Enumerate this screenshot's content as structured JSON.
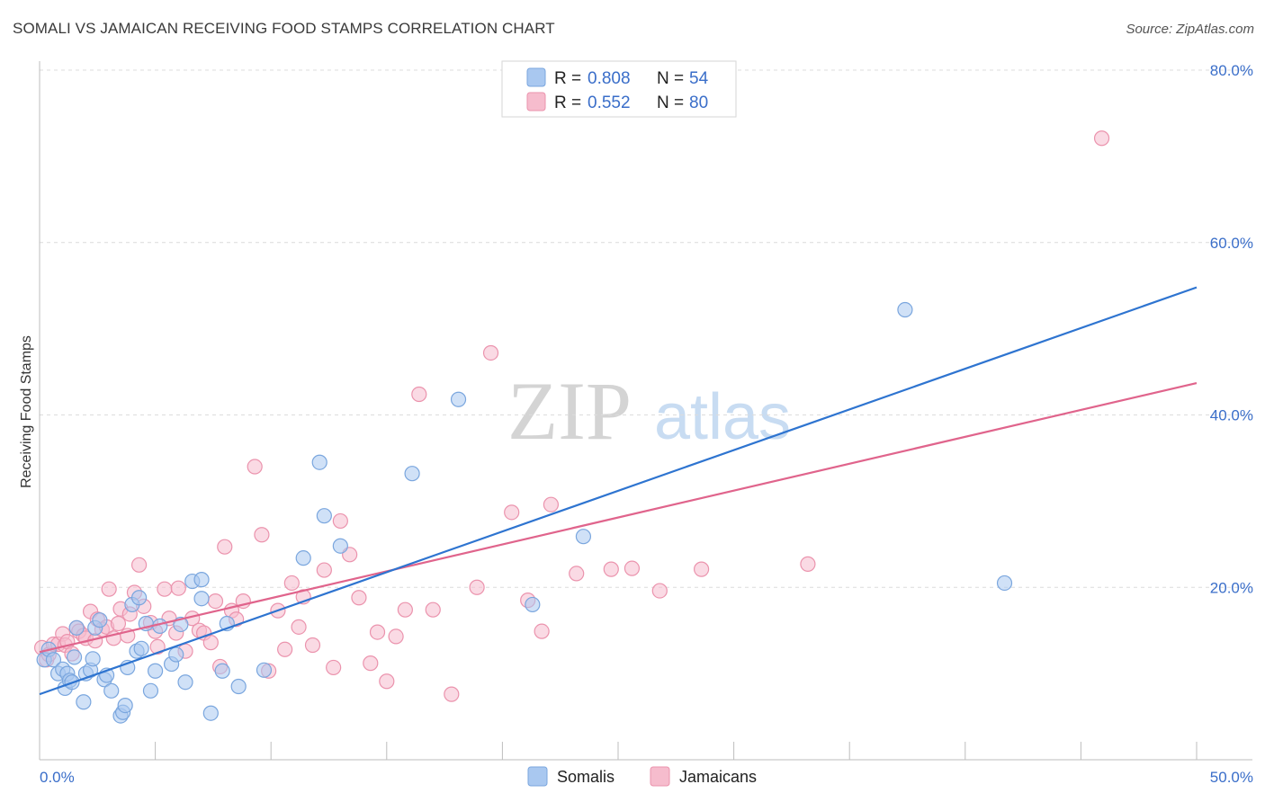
{
  "header": {
    "title": "SOMALI VS JAMAICAN RECEIVING FOOD STAMPS CORRELATION CHART",
    "source": "Source: ZipAtlas.com"
  },
  "watermark": {
    "zip": "ZIP",
    "atlas": "atlas"
  },
  "colors": {
    "somali_fill": "#a9c8f0",
    "somali_stroke": "#7aa6de",
    "somali_line": "#2e74d0",
    "jamaican_fill": "#f6bccd",
    "jamaican_stroke": "#eb93ad",
    "jamaican_line": "#e0648c",
    "grid": "#dcdcdc",
    "tick_label": "#3a6ec9"
  },
  "legend": {
    "r_label": "R =",
    "n_label": "N =",
    "rows": [
      {
        "series": "Somalis",
        "r": "0.808",
        "n": "54"
      },
      {
        "series": "Jamaicans",
        "r": "0.552",
        "n": "80"
      }
    ]
  },
  "chart_data": {
    "type": "scatter",
    "title": "SOMALI VS JAMAICAN RECEIVING FOOD STAMPS CORRELATION CHART",
    "xlabel": "",
    "ylabel": "Receiving Food Stamps",
    "xlim": [
      0,
      50
    ],
    "ylim": [
      0,
      80
    ],
    "x_tick_labels": [
      {
        "value": 0,
        "label": "0.0%"
      },
      {
        "value": 50,
        "label": "50.0%"
      }
    ],
    "y_tick_labels": [
      {
        "value": 20,
        "label": "20.0%"
      },
      {
        "value": 40,
        "label": "40.0%"
      },
      {
        "value": 60,
        "label": "60.0%"
      },
      {
        "value": 80,
        "label": "80.0%"
      }
    ],
    "grid": true,
    "legend_position": "top-center",
    "series": [
      {
        "name": "Somalis",
        "r": 0.808,
        "n": 54,
        "trend": {
          "x0": 0,
          "y0": 7.6,
          "x1": 50,
          "y1": 54.8
        },
        "points": [
          [
            0.2,
            11.6
          ],
          [
            0.4,
            12.8
          ],
          [
            0.6,
            11.6
          ],
          [
            0.8,
            10.0
          ],
          [
            1.0,
            10.5
          ],
          [
            1.1,
            8.3
          ],
          [
            1.2,
            10.0
          ],
          [
            1.3,
            9.2
          ],
          [
            1.4,
            9.0
          ],
          [
            1.5,
            11.9
          ],
          [
            1.6,
            15.3
          ],
          [
            1.9,
            6.7
          ],
          [
            2.0,
            10.0
          ],
          [
            2.2,
            10.4
          ],
          [
            2.3,
            11.7
          ],
          [
            2.4,
            15.3
          ],
          [
            2.8,
            9.3
          ],
          [
            2.9,
            9.8
          ],
          [
            3.1,
            8.0
          ],
          [
            3.5,
            5.1
          ],
          [
            3.6,
            5.5
          ],
          [
            3.7,
            6.3
          ],
          [
            3.8,
            10.7
          ],
          [
            4.0,
            18.0
          ],
          [
            4.2,
            12.6
          ],
          [
            4.3,
            18.8
          ],
          [
            4.4,
            12.9
          ],
          [
            4.6,
            15.8
          ],
          [
            4.8,
            8.0
          ],
          [
            5.0,
            10.3
          ],
          [
            5.2,
            15.5
          ],
          [
            5.7,
            11.1
          ],
          [
            5.9,
            12.2
          ],
          [
            6.1,
            15.7
          ],
          [
            6.3,
            9.0
          ],
          [
            6.6,
            20.7
          ],
          [
            7.0,
            18.7
          ],
          [
            7.4,
            5.4
          ],
          [
            7.9,
            10.3
          ],
          [
            8.1,
            15.8
          ],
          [
            8.6,
            8.5
          ],
          [
            9.7,
            10.4
          ],
          [
            11.4,
            23.4
          ],
          [
            12.1,
            34.5
          ],
          [
            12.3,
            28.3
          ],
          [
            13.0,
            24.8
          ],
          [
            16.1,
            33.2
          ],
          [
            18.1,
            41.8
          ],
          [
            21.3,
            18.0
          ],
          [
            23.5,
            25.9
          ],
          [
            37.4,
            52.2
          ],
          [
            41.7,
            20.5
          ],
          [
            7.0,
            20.9
          ],
          [
            2.6,
            16.2
          ]
        ]
      },
      {
        "name": "Jamaicans",
        "r": 0.552,
        "n": 80,
        "trend": {
          "x0": 0,
          "y0": 12.5,
          "x1": 50,
          "y1": 43.7
        },
        "points": [
          [
            0.1,
            13.0
          ],
          [
            0.3,
            11.6
          ],
          [
            0.4,
            12.2
          ],
          [
            0.6,
            13.4
          ],
          [
            0.8,
            13.4
          ],
          [
            1.0,
            14.6
          ],
          [
            1.1,
            13.3
          ],
          [
            1.2,
            13.7
          ],
          [
            1.4,
            12.3
          ],
          [
            1.6,
            15.3
          ],
          [
            1.7,
            14.9
          ],
          [
            1.9,
            14.4
          ],
          [
            2.0,
            14.1
          ],
          [
            2.2,
            17.2
          ],
          [
            2.4,
            13.8
          ],
          [
            2.5,
            16.3
          ],
          [
            2.7,
            15.1
          ],
          [
            2.9,
            15.4
          ],
          [
            3.0,
            19.8
          ],
          [
            3.2,
            14.1
          ],
          [
            3.4,
            15.8
          ],
          [
            3.5,
            17.5
          ],
          [
            3.8,
            14.4
          ],
          [
            3.9,
            16.9
          ],
          [
            4.1,
            19.4
          ],
          [
            4.3,
            22.6
          ],
          [
            4.5,
            17.8
          ],
          [
            4.8,
            15.9
          ],
          [
            5.0,
            14.9
          ],
          [
            5.1,
            13.1
          ],
          [
            5.4,
            19.8
          ],
          [
            5.6,
            16.4
          ],
          [
            5.9,
            14.7
          ],
          [
            6.0,
            19.9
          ],
          [
            6.3,
            12.6
          ],
          [
            6.6,
            16.4
          ],
          [
            6.9,
            15.0
          ],
          [
            7.1,
            14.7
          ],
          [
            7.4,
            13.6
          ],
          [
            7.6,
            18.4
          ],
          [
            7.8,
            10.8
          ],
          [
            8.0,
            24.7
          ],
          [
            8.3,
            17.3
          ],
          [
            8.5,
            16.3
          ],
          [
            8.8,
            18.4
          ],
          [
            9.3,
            34.0
          ],
          [
            9.6,
            26.1
          ],
          [
            9.9,
            10.3
          ],
          [
            10.3,
            17.3
          ],
          [
            10.6,
            12.8
          ],
          [
            10.9,
            20.5
          ],
          [
            11.2,
            15.4
          ],
          [
            11.4,
            18.9
          ],
          [
            11.8,
            13.3
          ],
          [
            12.3,
            22.0
          ],
          [
            12.7,
            10.7
          ],
          [
            13.0,
            27.7
          ],
          [
            13.4,
            23.8
          ],
          [
            13.8,
            18.8
          ],
          [
            14.3,
            11.2
          ],
          [
            14.6,
            14.8
          ],
          [
            15.0,
            9.1
          ],
          [
            15.4,
            14.3
          ],
          [
            15.8,
            17.4
          ],
          [
            16.4,
            42.4
          ],
          [
            17.0,
            17.4
          ],
          [
            17.8,
            7.6
          ],
          [
            18.9,
            20.0
          ],
          [
            19.5,
            47.2
          ],
          [
            20.4,
            28.7
          ],
          [
            21.1,
            18.5
          ],
          [
            21.7,
            14.9
          ],
          [
            22.1,
            29.6
          ],
          [
            23.2,
            21.6
          ],
          [
            24.7,
            22.1
          ],
          [
            25.6,
            22.2
          ],
          [
            26.8,
            19.6
          ],
          [
            28.6,
            22.1
          ],
          [
            33.2,
            22.7
          ],
          [
            45.9,
            72.1
          ]
        ]
      }
    ]
  }
}
